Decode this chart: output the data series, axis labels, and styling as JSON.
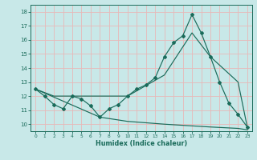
{
  "xlabel": "Humidex (Indice chaleur)",
  "bg_color": "#c8e8e8",
  "grid_color": "#e8b8b8",
  "line_color": "#1a6b5a",
  "xlim": [
    -0.5,
    23.5
  ],
  "ylim": [
    9.5,
    18.5
  ],
  "xticks": [
    0,
    1,
    2,
    3,
    4,
    5,
    6,
    7,
    8,
    9,
    10,
    11,
    12,
    13,
    14,
    15,
    16,
    17,
    18,
    19,
    20,
    21,
    22,
    23
  ],
  "yticks": [
    10,
    11,
    12,
    13,
    14,
    15,
    16,
    17,
    18
  ],
  "line1_x": [
    0,
    1,
    2,
    3,
    4,
    5,
    6,
    7,
    8,
    9,
    10,
    11,
    12,
    13,
    14,
    15,
    16,
    17,
    18,
    19,
    20,
    21,
    22,
    23
  ],
  "line1_y": [
    12.5,
    12.0,
    11.4,
    11.1,
    12.0,
    11.8,
    11.3,
    10.5,
    11.1,
    11.4,
    12.0,
    12.5,
    12.8,
    13.3,
    14.8,
    15.8,
    16.3,
    17.8,
    16.5,
    14.8,
    13.0,
    11.5,
    10.7,
    9.8
  ],
  "line2_x": [
    0,
    2,
    4,
    10,
    14,
    17,
    19,
    22,
    23
  ],
  "line2_y": [
    12.5,
    12.0,
    12.0,
    12.0,
    13.5,
    16.5,
    14.8,
    13.0,
    9.8
  ],
  "line3_x": [
    0,
    7,
    10,
    14,
    19,
    22,
    23
  ],
  "line3_y": [
    12.5,
    10.5,
    10.2,
    10.0,
    9.8,
    9.7,
    9.6
  ]
}
